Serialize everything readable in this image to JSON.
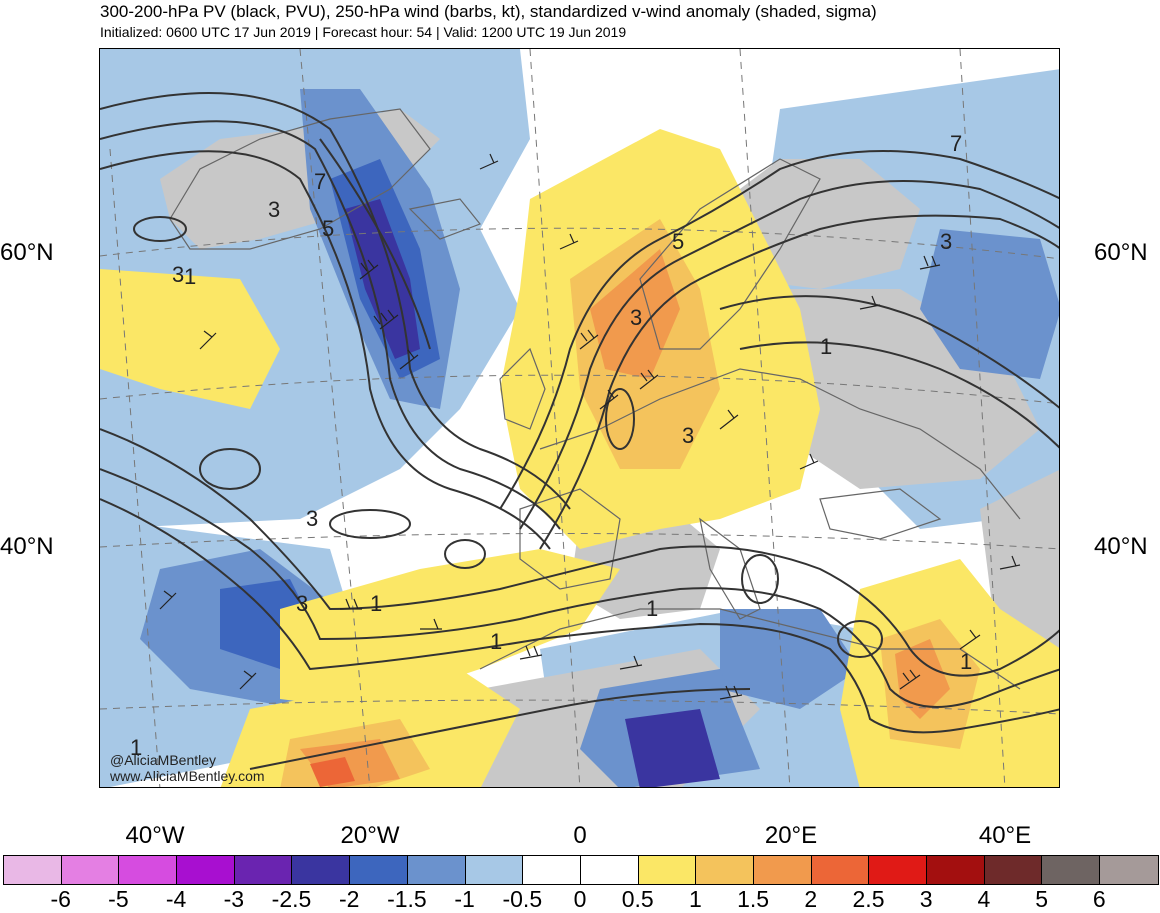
{
  "header": {
    "title": "300-200-hPa PV (black, PVU), 250-hPa wind (barbs, kt), standardized v-wind anomaly (shaded, sigma)",
    "subtitle": "Initialized: 0600 UTC 17 Jun 2019 | Forecast hour: 54 | Valid: 1200 UTC 19 Jun 2019"
  },
  "axes": {
    "lat_left": [
      "60°N",
      "40°N"
    ],
    "lat_right": [
      "60°N",
      "40°N"
    ],
    "lon": [
      "40°W",
      "20°W",
      "0",
      "20°E",
      "40°E"
    ]
  },
  "contour_labels": [
    "3",
    "7",
    "5",
    "3",
    "1",
    "3",
    "3",
    "1",
    "1",
    "1",
    "5",
    "3",
    "3",
    "1",
    "3",
    "7",
    "1",
    "1"
  ],
  "credits": {
    "handle": "@AliciaMBentley",
    "site": "www.AliciaMBentley.com"
  },
  "colorbar": {
    "colors": [
      "#e9b8e6",
      "#e47fe3",
      "#d64ce0",
      "#a80fd0",
      "#6a24b0",
      "#3a35a0",
      "#3d66be",
      "#6b92cd",
      "#a7c8e6",
      "#ffffff",
      "#ffffff",
      "#fbe766",
      "#f4c35c",
      "#f19a4d",
      "#ec6637",
      "#e01a16",
      "#a30f0f",
      "#6e2a2a",
      "#6e6462",
      "#a59a99"
    ],
    "ticks": [
      "-6",
      "-5",
      "-4",
      "-3",
      "-2.5",
      "-2",
      "-1.5",
      "-1",
      "-0.5",
      "0",
      "0.5",
      "1",
      "1.5",
      "2",
      "2.5",
      "3",
      "4",
      "5",
      "6"
    ]
  },
  "map_colors": {
    "land_gray": "#c8c8c8",
    "light_blue": "#a7c8e6",
    "mid_blue": "#6b92cd",
    "blue": "#3d66be",
    "dark_blue": "#3a35a0",
    "yellow": "#fbe766",
    "light_orange": "#f4c35c",
    "orange": "#f19a4d",
    "red_orange": "#ec6637"
  }
}
